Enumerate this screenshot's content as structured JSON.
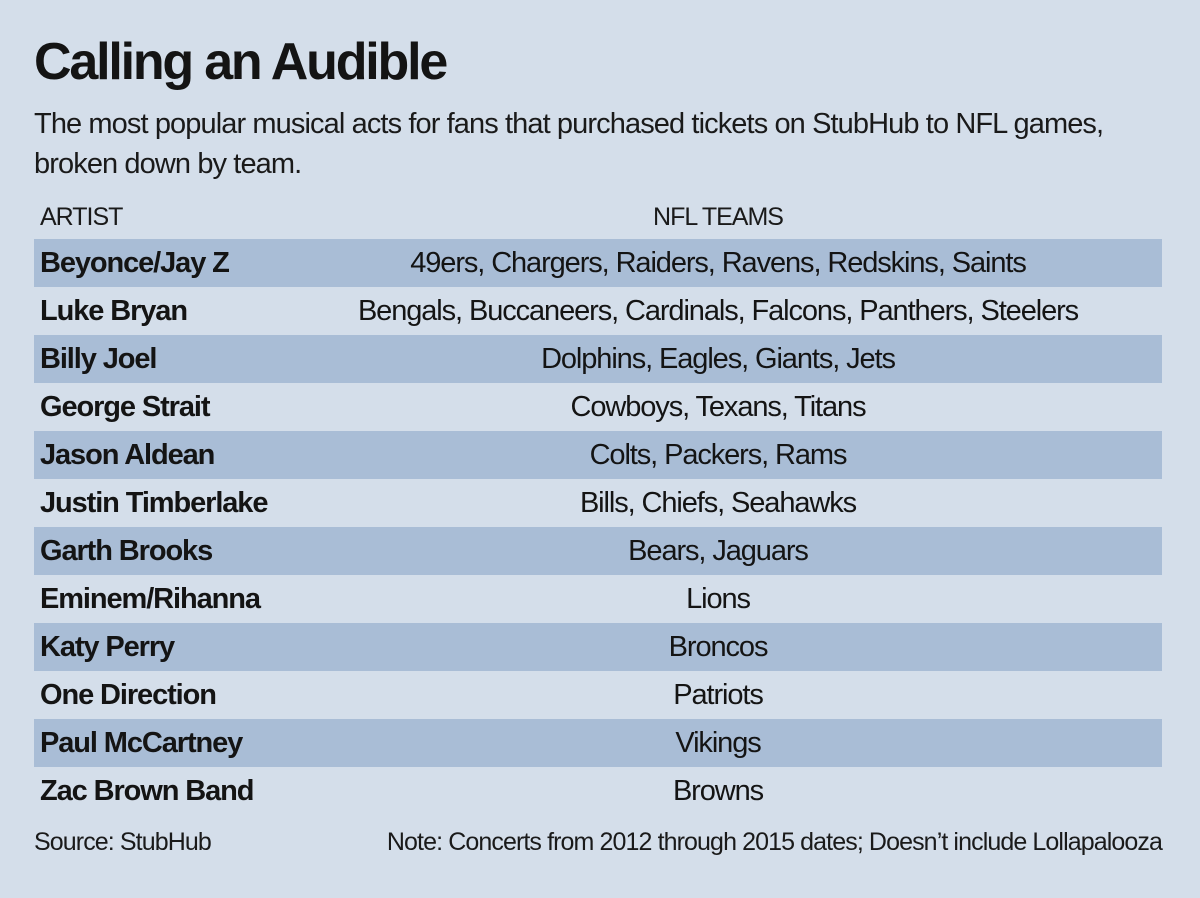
{
  "chart_data": {
    "type": "table",
    "title": "Calling an Audible",
    "subtitle": "The most popular musical acts for fans that purchased tickets on StubHub to NFL games, broken down by team.",
    "columns": [
      "ARTIST",
      "NFL TEAMS"
    ],
    "rows": [
      {
        "artist": "Beyonce/Jay Z",
        "teams": "49ers, Chargers, Raiders, Ravens, Redskins, Saints"
      },
      {
        "artist": "Luke Bryan",
        "teams": "Bengals, Buccaneers, Cardinals, Falcons, Panthers, Steelers"
      },
      {
        "artist": "Billy Joel",
        "teams": "Dolphins, Eagles, Giants, Jets"
      },
      {
        "artist": "George Strait",
        "teams": "Cowboys, Texans, Titans"
      },
      {
        "artist": "Jason Aldean",
        "teams": "Colts, Packers, Rams"
      },
      {
        "artist": "Justin Timberlake",
        "teams": "Bills, Chiefs, Seahawks"
      },
      {
        "artist": "Garth Brooks",
        "teams": "Bears, Jaguars"
      },
      {
        "artist": "Eminem/Rihanna",
        "teams": "Lions"
      },
      {
        "artist": "Katy Perry",
        "teams": "Broncos"
      },
      {
        "artist": "One Direction",
        "teams": "Patriots"
      },
      {
        "artist": "Paul McCartney",
        "teams": "Vikings"
      },
      {
        "artist": "Zac Brown Band",
        "teams": "Browns"
      }
    ],
    "source": "Source: StubHub",
    "note": "Note: Concerts from 2012 through 2015 dates; Doesn’t include Lollapalooza"
  },
  "colors": {
    "background": "#d4deea",
    "row_shade": "#a9bdd6",
    "text": "#141414"
  }
}
